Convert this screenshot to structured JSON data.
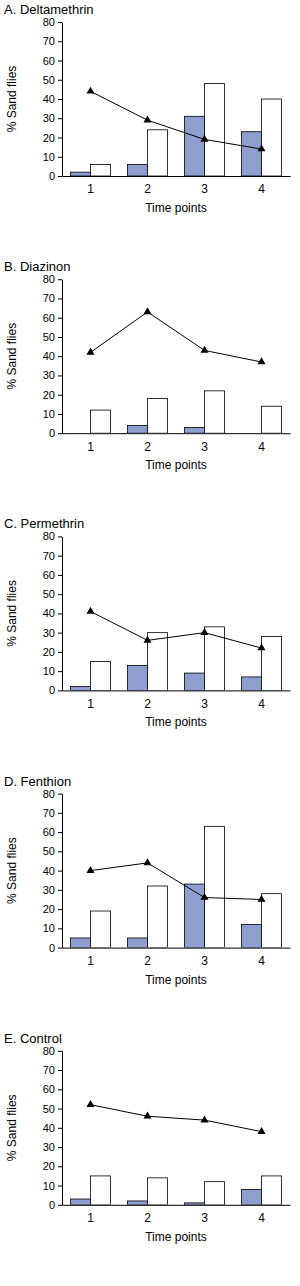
{
  "chart_data": [
    {
      "type": "bar",
      "title": "A. Deltamethrin",
      "x_label": "Time points",
      "y_label": "% Sand flies",
      "categories": [
        "1",
        "2",
        "3",
        "4"
      ],
      "ylim": [
        0,
        80
      ],
      "yticks": [
        0,
        10,
        20,
        30,
        40,
        50,
        60,
        70,
        80
      ],
      "series": [
        {
          "type": "bar",
          "color": "#8f9dcf",
          "values": [
            2,
            6,
            31,
            23
          ]
        },
        {
          "type": "bar",
          "color": "#ffffff",
          "values": [
            6,
            24,
            48,
            40
          ]
        },
        {
          "type": "line",
          "color": "#000000",
          "marker": "triangle",
          "values": [
            44,
            29,
            19,
            14
          ]
        }
      ]
    },
    {
      "type": "bar",
      "title": "B. Diazinon",
      "x_label": "Time points",
      "y_label": "% Sand flies",
      "categories": [
        "1",
        "2",
        "3",
        "4"
      ],
      "ylim": [
        0,
        80
      ],
      "yticks": [
        0,
        10,
        20,
        30,
        40,
        50,
        60,
        70,
        80
      ],
      "series": [
        {
          "type": "bar",
          "color": "#8f9dcf",
          "values": [
            0,
            4,
            3,
            0
          ]
        },
        {
          "type": "bar",
          "color": "#ffffff",
          "values": [
            12,
            18,
            22,
            14
          ]
        },
        {
          "type": "line",
          "color": "#000000",
          "marker": "triangle",
          "values": [
            42,
            63,
            43,
            37
          ]
        }
      ]
    },
    {
      "type": "bar",
      "title": "C. Permethrin",
      "x_label": "Time points",
      "y_label": "% Sand flies",
      "categories": [
        "1",
        "2",
        "3",
        "4"
      ],
      "ylim": [
        0,
        80
      ],
      "yticks": [
        0,
        10,
        20,
        30,
        40,
        50,
        60,
        70,
        80
      ],
      "series": [
        {
          "type": "bar",
          "color": "#8f9dcf",
          "values": [
            2,
            13,
            9,
            7
          ]
        },
        {
          "type": "bar",
          "color": "#ffffff",
          "values": [
            15,
            30,
            33,
            28
          ]
        },
        {
          "type": "line",
          "color": "#000000",
          "marker": "triangle",
          "values": [
            41,
            26,
            30,
            22
          ]
        }
      ]
    },
    {
      "type": "bar",
      "title": "D. Fenthion",
      "x_label": "Time points",
      "y_label": "% Sand flies",
      "categories": [
        "1",
        "2",
        "3",
        "4"
      ],
      "ylim": [
        0,
        80
      ],
      "yticks": [
        0,
        10,
        20,
        30,
        40,
        50,
        60,
        70,
        80
      ],
      "series": [
        {
          "type": "bar",
          "color": "#8f9dcf",
          "values": [
            5,
            5,
            33,
            12
          ]
        },
        {
          "type": "bar",
          "color": "#ffffff",
          "values": [
            19,
            32,
            63,
            28
          ]
        },
        {
          "type": "line",
          "color": "#000000",
          "marker": "triangle",
          "values": [
            40,
            44,
            26,
            25
          ]
        }
      ]
    },
    {
      "type": "bar",
      "title": "E. Control",
      "x_label": "Time points",
      "y_label": "% Sand flies",
      "categories": [
        "1",
        "2",
        "3",
        "4"
      ],
      "ylim": [
        0,
        80
      ],
      "yticks": [
        0,
        10,
        20,
        30,
        40,
        50,
        60,
        70,
        80
      ],
      "series": [
        {
          "type": "bar",
          "color": "#8f9dcf",
          "values": [
            3,
            2,
            1,
            8
          ]
        },
        {
          "type": "bar",
          "color": "#ffffff",
          "values": [
            15,
            14,
            12,
            15
          ]
        },
        {
          "type": "line",
          "color": "#000000",
          "marker": "triangle",
          "values": [
            52,
            46,
            44,
            38
          ]
        }
      ]
    }
  ]
}
